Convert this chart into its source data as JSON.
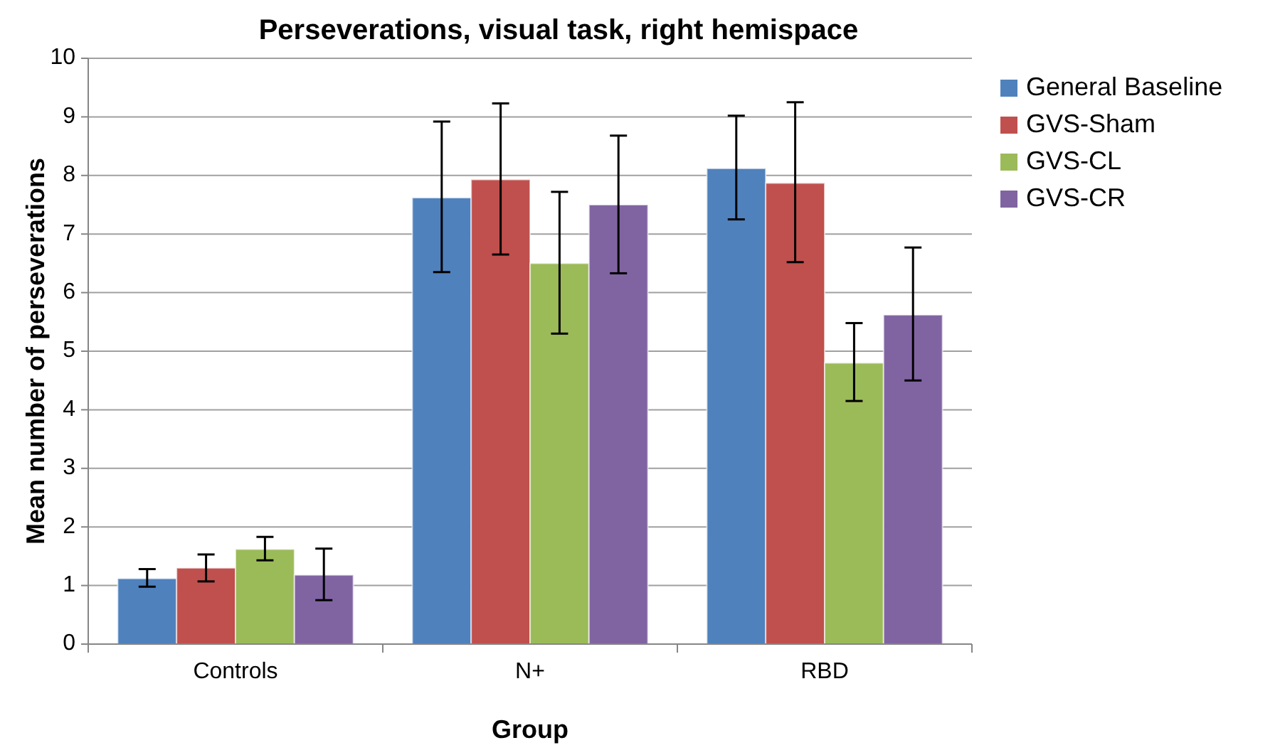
{
  "chart_data": {
    "type": "bar",
    "title": "Perseverations, visual task, right hemispace",
    "xlabel": "Group",
    "ylabel": "Mean number of perseverations",
    "categories": [
      "Controls",
      "N+",
      "RBD"
    ],
    "series": [
      {
        "name": "General Baseline",
        "color": "#4f81bd",
        "values": [
          1.12,
          7.62,
          8.12
        ],
        "errors": [
          [
            0.98,
            1.28
          ],
          [
            6.35,
            8.92
          ],
          [
            7.25,
            9.02
          ]
        ]
      },
      {
        "name": "GVS-Sham",
        "color": "#c0504d",
        "values": [
          1.3,
          7.93,
          7.87
        ],
        "errors": [
          [
            1.07,
            1.53
          ],
          [
            6.65,
            9.23
          ],
          [
            6.52,
            9.25
          ]
        ]
      },
      {
        "name": "GVS-CL",
        "color": "#9bbb59",
        "values": [
          1.62,
          6.5,
          4.8
        ],
        "errors": [
          [
            1.43,
            1.83
          ],
          [
            5.3,
            7.72
          ],
          [
            4.15,
            5.48
          ]
        ]
      },
      {
        "name": "GVS-CR",
        "color": "#8064a2",
        "values": [
          1.18,
          7.5,
          5.62
        ],
        "errors": [
          [
            0.75,
            1.63
          ],
          [
            6.33,
            8.68
          ],
          [
            4.5,
            6.77
          ]
        ]
      }
    ],
    "ylim": [
      0,
      10
    ],
    "yticks": [
      0,
      1,
      2,
      3,
      4,
      5,
      6,
      7,
      8,
      9,
      10
    ],
    "grid": "y",
    "legend": "right"
  }
}
